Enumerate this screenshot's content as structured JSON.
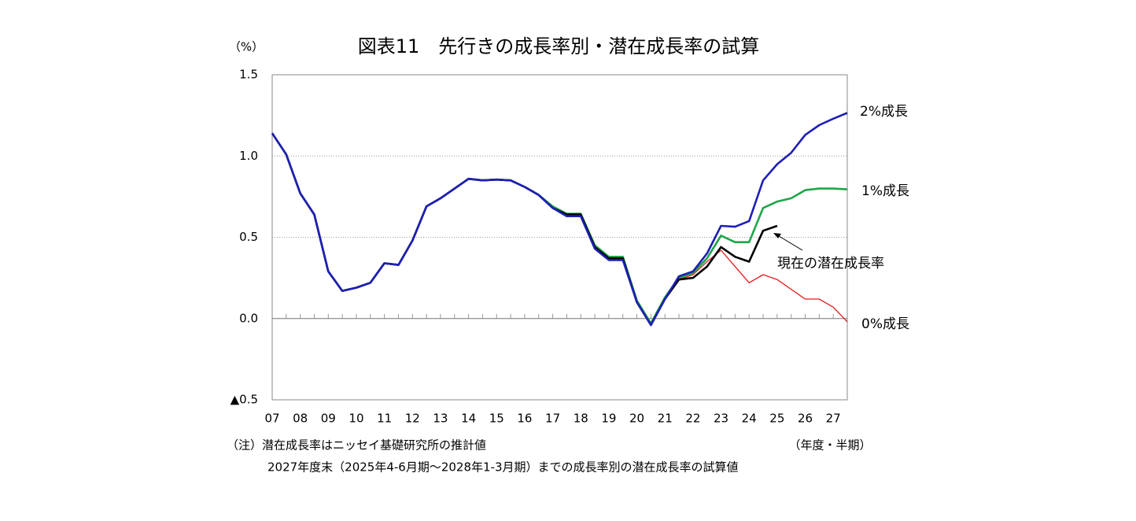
{
  "chart_data": {
    "type": "line",
    "title": "図表11　先行きの成長率別・潜在成長率の試算",
    "y_unit": "（%）",
    "x_unit": "（年度・半期）",
    "notes": [
      "（注）潜在成長率はニッセイ基礎研究所の推計値",
      "2027年度末（2025年4-6月期～2028年1-3月期）までの成長率別の潜在成長率の試算値"
    ],
    "categories": [
      "07",
      null,
      "08",
      null,
      "09",
      null,
      "10",
      null,
      "11",
      null,
      "12",
      null,
      "13",
      null,
      "14",
      null,
      "15",
      null,
      "16",
      null,
      "17",
      null,
      "18",
      null,
      "19",
      null,
      "20",
      null,
      "21",
      null,
      "22",
      null,
      "23",
      null,
      "24",
      null,
      "25",
      null,
      "26",
      null,
      "27",
      null
    ],
    "ylim": [
      -0.5,
      1.5
    ],
    "yticks": [
      1.5,
      {
        "value": 1.0,
        "label": "1.0"
      },
      0.5,
      {
        "value": 0.0,
        "label": "0.0"
      },
      {
        "value": -0.5,
        "label": "▲0.5"
      }
    ],
    "grid": true,
    "series": [
      {
        "name": "0%成長",
        "color": "#e41a1c",
        "values": [
          null,
          null,
          null,
          null,
          null,
          null,
          null,
          null,
          null,
          null,
          null,
          null,
          null,
          null,
          null,
          null,
          null,
          null,
          null,
          null,
          null,
          null,
          null,
          null,
          null,
          null,
          null,
          null,
          0.12,
          0.24,
          0.27,
          0.35,
          0.42,
          0.32,
          0.22,
          0.27,
          0.24,
          0.18,
          0.12,
          0.12,
          0.07,
          -0.02
        ]
      },
      {
        "name": "1%成長",
        "color": "#1fa64a",
        "values": [
          1.14,
          1.01,
          0.77,
          0.64,
          0.29,
          0.17,
          0.19,
          0.22,
          0.34,
          0.33,
          0.48,
          0.69,
          0.74,
          0.8,
          0.86,
          0.85,
          0.855,
          0.85,
          0.81,
          0.76,
          0.69,
          0.645,
          0.645,
          0.45,
          0.38,
          0.38,
          0.11,
          -0.03,
          0.13,
          0.25,
          0.28,
          0.37,
          0.51,
          0.47,
          0.47,
          0.68,
          0.72,
          0.74,
          0.79,
          0.8,
          0.8,
          0.795
        ]
      },
      {
        "name": "現在の潜在成長率",
        "color": "#000000",
        "values": [
          1.14,
          1.01,
          0.77,
          0.64,
          0.29,
          0.17,
          0.19,
          0.22,
          0.34,
          0.33,
          0.48,
          0.69,
          0.74,
          0.8,
          0.86,
          0.85,
          0.855,
          0.85,
          0.81,
          0.76,
          0.68,
          0.64,
          0.64,
          0.44,
          0.37,
          0.37,
          0.1,
          -0.04,
          0.12,
          0.24,
          0.25,
          0.32,
          0.44,
          0.38,
          0.35,
          0.54,
          0.57,
          null,
          null,
          null,
          null,
          null
        ]
      },
      {
        "name": "2%成長",
        "color": "#1f1fb4",
        "values": [
          1.14,
          1.01,
          0.77,
          0.64,
          0.29,
          0.17,
          0.19,
          0.22,
          0.34,
          0.33,
          0.48,
          0.69,
          0.74,
          0.8,
          0.86,
          0.85,
          0.855,
          0.85,
          0.81,
          0.76,
          0.68,
          0.63,
          0.63,
          0.43,
          0.36,
          0.36,
          0.1,
          -0.04,
          0.12,
          0.26,
          0.29,
          0.4,
          0.57,
          0.565,
          0.6,
          0.85,
          0.95,
          1.02,
          1.13,
          1.19,
          1.23,
          1.265
        ]
      }
    ]
  }
}
